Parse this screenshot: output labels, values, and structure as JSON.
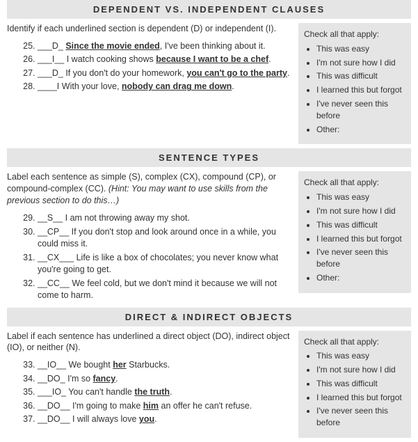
{
  "section1": {
    "heading": "DEPENDENT VS. INDEPENDENT CLAUSES",
    "instructions": "Identify if each underlined section is dependent (D) or independent (I).",
    "start": 25,
    "items": [
      {
        "blank": "___D_ ",
        "pre": "",
        "u1": "Since the movie ended",
        "mid": ", I've been thinking about it.",
        "u2": "",
        "post": ""
      },
      {
        "blank": "___I__ ",
        "pre": "I watch cooking shows ",
        "u1": "because I want to be a chef",
        "mid": ".",
        "u2": "",
        "post": ""
      },
      {
        "blank": "___D_ ",
        "pre": "If you don't do your homework, ",
        "u1": "you can't go to the party",
        "mid": ".",
        "u2": "",
        "post": ""
      },
      {
        "blank": "____I ",
        "pre": "With your love, ",
        "u1": "nobody can drag me down",
        "mid": ".",
        "u2": "",
        "post": ""
      }
    ],
    "check": {
      "title": "Check all that apply:",
      "options": [
        "This was easy",
        "I'm not sure how I did",
        "This was difficult",
        "I learned this but forgot",
        "I've never seen this before",
        "Other:"
      ]
    }
  },
  "section2": {
    "heading": "SENTENCE TYPES",
    "instructions": "Label each sentence as simple (S), complex (CX), compound (CP), or compound-complex (CC). ",
    "hint": "(Hint: You may want to use skills from the previous section to do this…)",
    "start": 29,
    "items": [
      {
        "blank": "__S__ ",
        "text": "I am not throwing away my shot."
      },
      {
        "blank": "__CP__ ",
        "text": "If you don't stop and look around once in a while, you could miss it."
      },
      {
        "blank": "__CX___ ",
        "text": "Life is like a box of chocolates; you never know what you're going to get."
      },
      {
        "blank": "__CC__ ",
        "text": "We feel cold, but we don't mind it because we will not come to harm."
      }
    ],
    "check": {
      "title": "Check all that apply:",
      "options": [
        "This was easy",
        "I'm not sure how I did",
        "This was difficult",
        "I learned this but forgot",
        "I've never seen this before",
        "Other:"
      ]
    }
  },
  "section3": {
    "heading": "DIRECT & INDIRECT OBJECTS",
    "instructions": "Label if each sentence has underlined a direct object (DO), indirect object (IO), or neither (N).",
    "start": 33,
    "items": [
      {
        "blank": "__IO__ ",
        "pre": "We bought ",
        "u": "her",
        "post": " Starbucks."
      },
      {
        "blank": "__DO_ ",
        "pre": "I'm so ",
        "u": "fancy",
        "post": "."
      },
      {
        "blank": "___IO_ ",
        "pre": "You can't handle ",
        "u": "the truth",
        "post": "."
      },
      {
        "blank": "__DO__ ",
        "pre": "I'm going to make ",
        "u": "him",
        "post": " an offer he can't refuse."
      },
      {
        "blank": "__DO__ ",
        "pre": "I will always love ",
        "u": "you",
        "post": "."
      }
    ],
    "check": {
      "title": "Check all that apply:",
      "options": [
        "This was easy",
        "I'm not sure how I did",
        "This was difficult",
        "I learned this but forgot",
        "I've never seen this before"
      ]
    }
  }
}
